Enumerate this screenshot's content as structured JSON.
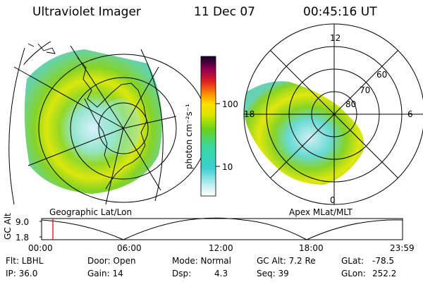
{
  "header": {
    "title": "Ultraviolet Imager",
    "date": "11 Dec 07",
    "time": "00:45:16 UT"
  },
  "left_panel": {
    "label": "Geographic Lat/Lon"
  },
  "right_panel": {
    "label": "Apex MLat/MLT",
    "hour_labels": {
      "top": "12",
      "left": "18",
      "right": "6",
      "bottom": "0"
    },
    "lat_labels": [
      "60",
      "70",
      "80"
    ]
  },
  "colorbar": {
    "unit_label": "photon cm⁻²s⁻¹",
    "ticks": [
      "100",
      "10"
    ]
  },
  "timeline": {
    "axis_label": "GC Alt",
    "y_ticks": [
      "9.0",
      "1.8"
    ],
    "x_ticks": [
      "00:00",
      "06:00",
      "12:00",
      "18:00",
      "23:59"
    ],
    "marker_color": "#cc0000"
  },
  "status": {
    "filter": "Flt: LBHL",
    "ip": "IP: 36.0",
    "door": "Door: Open",
    "gain": "Gain: 14",
    "mode": "Mode: Normal",
    "dsp_label": "Dsp:",
    "dsp_value": "4.3",
    "gc_alt": "GC Alt: 7.2 Re",
    "seq": "Seq: 39",
    "glat_label": "GLat:",
    "glat_value": "-78.5",
    "glon_label": "GLon:",
    "glon_value": "252.2"
  },
  "colors": {
    "aurora_green": "#7fd11b",
    "aurora_yellow": "#e6e600",
    "aurora_cyan": "#37d2d2",
    "background": "#ffffff"
  }
}
